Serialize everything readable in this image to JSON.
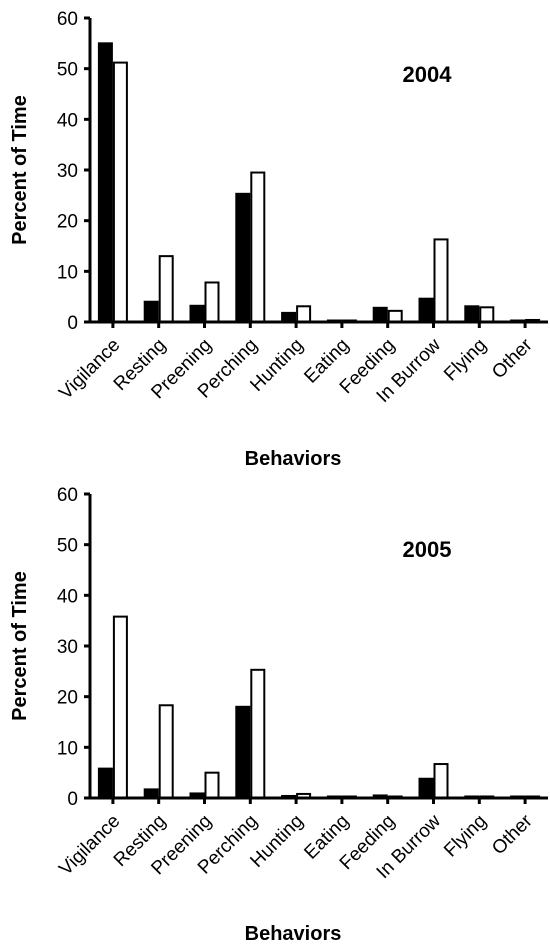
{
  "chart_data": [
    {
      "type": "bar",
      "title": "2004",
      "xlabel": "Behaviors",
      "ylabel": "Percent of Time",
      "ylim": [
        0,
        60
      ],
      "yticks": [
        0,
        10,
        20,
        30,
        40,
        50,
        60
      ],
      "categories": [
        "Vigilance",
        "Resting",
        "Preening",
        "Perching",
        "Hunting",
        "Eating",
        "Feeding",
        "In Burrow",
        "Flying",
        "Other"
      ],
      "series": [
        {
          "color": "#000000",
          "values": [
            55,
            4,
            3.2,
            25.3,
            1.8,
            0.2,
            2.8,
            4.6,
            3.1,
            0.1
          ]
        },
        {
          "color": "#ffffff",
          "values": [
            51.2,
            13,
            7.8,
            29.5,
            3.1,
            0.1,
            2.2,
            16.3,
            2.9,
            0.4
          ]
        }
      ]
    },
    {
      "type": "bar",
      "title": "2005",
      "xlabel": "Behaviors",
      "ylabel": "Percent of Time",
      "ylim": [
        0,
        60
      ],
      "yticks": [
        0,
        10,
        20,
        30,
        40,
        50,
        60
      ],
      "categories": [
        "Vigilance",
        "Resting",
        "Preening",
        "Perching",
        "Hunting",
        "Eating",
        "Feeding",
        "In Burrow",
        "Flying",
        "Other"
      ],
      "series": [
        {
          "color": "#000000",
          "values": [
            5.8,
            1.7,
            0.9,
            18,
            0.4,
            0.1,
            0.5,
            3.8,
            0.3,
            0.1
          ]
        },
        {
          "color": "#ffffff",
          "values": [
            35.8,
            18.3,
            5,
            25.3,
            0.8,
            0.1,
            0.2,
            6.7,
            0.3,
            0.2
          ]
        }
      ]
    }
  ]
}
